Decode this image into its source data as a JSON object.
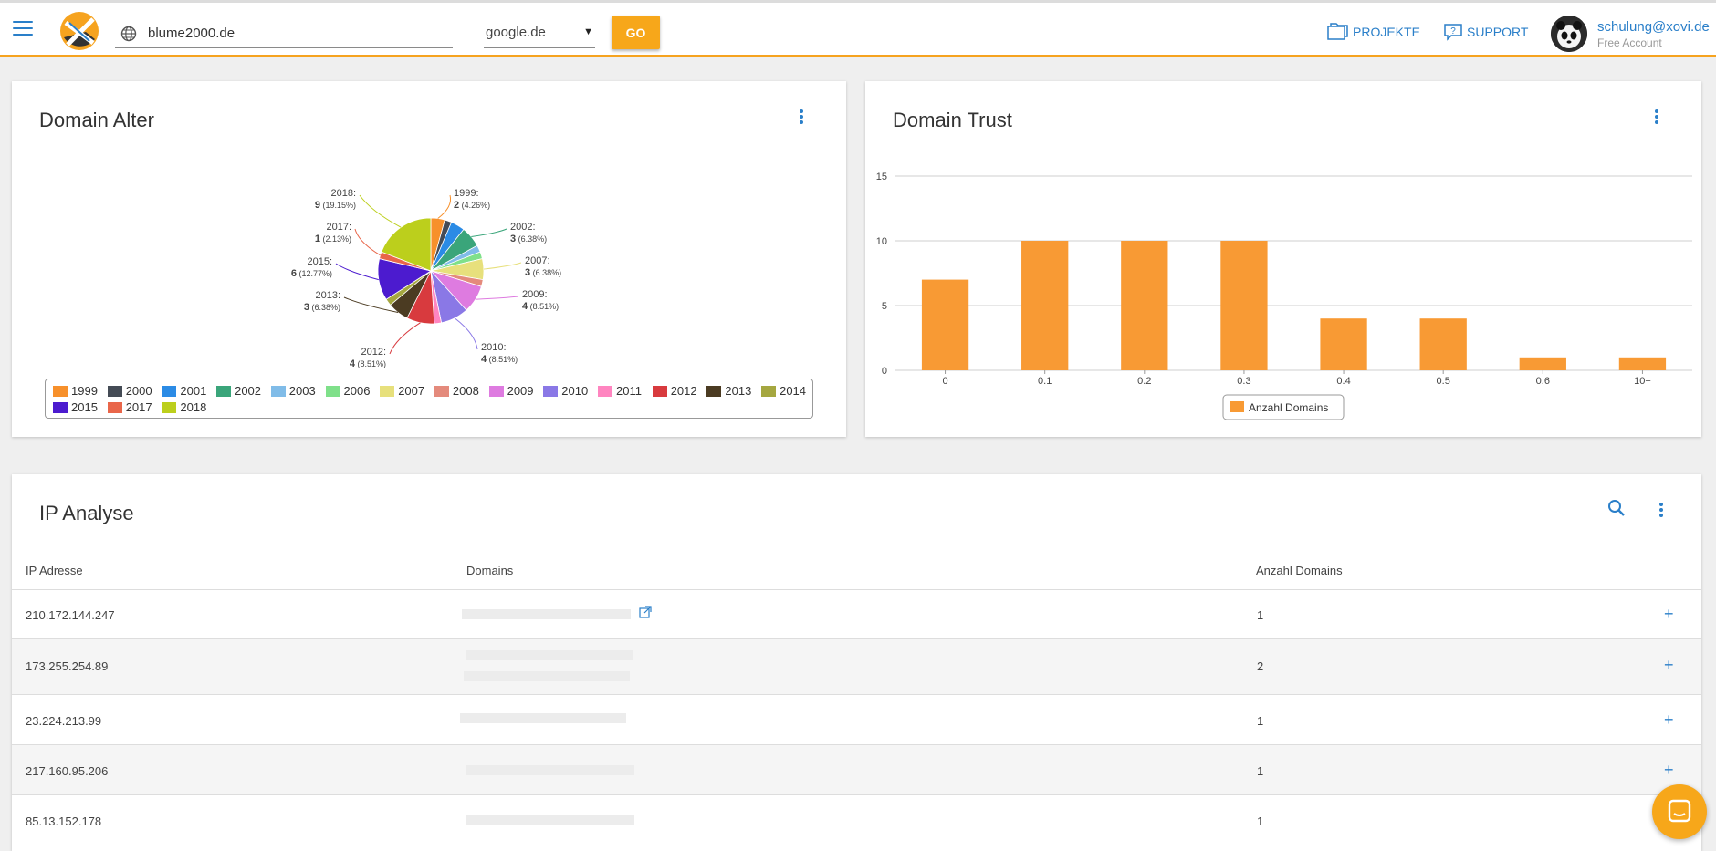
{
  "header": {
    "domain_value": "blume2000.de",
    "engine_selected": "google.de",
    "go_label": "GO",
    "nav_projekte": "PROJEKTE",
    "nav_support": "SUPPORT",
    "user_email": "schulung@xovi.de",
    "user_plan": "Free Account",
    "accent_color": "#f6a31f",
    "link_color": "#2a7fc9"
  },
  "domain_alter": {
    "title": "Domain Alter",
    "labels": [
      {
        "year": "1999:",
        "count": "2",
        "pct": "(4.26%)"
      },
      {
        "year": "2002:",
        "count": "3",
        "pct": "(6.38%)"
      },
      {
        "year": "2007:",
        "count": "3",
        "pct": "(6.38%)"
      },
      {
        "year": "2009:",
        "count": "4",
        "pct": "(8.51%)"
      },
      {
        "year": "2010:",
        "count": "4",
        "pct": "(8.51%)"
      },
      {
        "year": "2012:",
        "count": "4",
        "pct": "(8.51%)"
      },
      {
        "year": "2013:",
        "count": "3",
        "pct": "(6.38%)"
      },
      {
        "year": "2015:",
        "count": "6",
        "pct": "(12.77%)"
      },
      {
        "year": "2017:",
        "count": "1",
        "pct": "(2.13%)"
      },
      {
        "year": "2018:",
        "count": "9",
        "pct": "(19.15%)"
      }
    ],
    "legend": [
      {
        "label": "1999",
        "color": "#f7902b"
      },
      {
        "label": "2000",
        "color": "#444b55"
      },
      {
        "label": "2001",
        "color": "#2b8be5"
      },
      {
        "label": "2002",
        "color": "#3aa57a"
      },
      {
        "label": "2003",
        "color": "#80bce8"
      },
      {
        "label": "2006",
        "color": "#7fe08a"
      },
      {
        "label": "2007",
        "color": "#e7e07c"
      },
      {
        "label": "2008",
        "color": "#e48a7c"
      },
      {
        "label": "2009",
        "color": "#de7be0"
      },
      {
        "label": "2010",
        "color": "#8a78e6"
      },
      {
        "label": "2011",
        "color": "#ff85c0"
      },
      {
        "label": "2012",
        "color": "#d83a3e"
      },
      {
        "label": "2013",
        "color": "#4b3b22"
      },
      {
        "label": "2014",
        "color": "#a5a740"
      },
      {
        "label": "2015",
        "color": "#4c1bcf"
      },
      {
        "label": "2017",
        "color": "#e9664a"
      },
      {
        "label": "2018",
        "color": "#bccf1c"
      }
    ]
  },
  "chart_data": [
    {
      "type": "pie",
      "title": "Domain Alter",
      "categories": [
        "1999",
        "2000",
        "2001",
        "2002",
        "2003",
        "2006",
        "2007",
        "2008",
        "2009",
        "2010",
        "2011",
        "2012",
        "2013",
        "2014",
        "2015",
        "2017",
        "2018"
      ],
      "values": [
        2,
        1,
        2,
        3,
        1,
        1,
        3,
        1,
        4,
        4,
        1,
        4,
        3,
        1,
        6,
        1,
        9
      ],
      "colors": [
        "#f7902b",
        "#444b55",
        "#2b8be5",
        "#3aa57a",
        "#80bce8",
        "#7fe08a",
        "#e7e07c",
        "#e48a7c",
        "#de7be0",
        "#8a78e6",
        "#ff85c0",
        "#d83a3e",
        "#4b3b22",
        "#a5a740",
        "#4c1bcf",
        "#e9664a",
        "#bccf1c"
      ],
      "legend_position": "bottom"
    },
    {
      "type": "bar",
      "title": "Domain Trust",
      "categories": [
        "0",
        "0.1",
        "0.2",
        "0.3",
        "0.4",
        "0.5",
        "0.6",
        "10+"
      ],
      "series": [
        {
          "name": "Anzahl Domains",
          "values": [
            7,
            10,
            10,
            10,
            4,
            4,
            1,
            1
          ],
          "color": "#f89a34"
        }
      ],
      "yticks": [
        "0",
        "5",
        "10",
        "15"
      ],
      "ylim": [
        0,
        15
      ],
      "grid": true,
      "legend_position": "bottom"
    }
  ],
  "domain_trust": {
    "title": "Domain Trust"
  },
  "ip_analyse": {
    "title": "IP Analyse",
    "columns": [
      "IP Adresse",
      "Domains",
      "Anzahl Domains"
    ],
    "rows": [
      {
        "ip": "210.172.144.247",
        "count": "1"
      },
      {
        "ip": "173.255.254.89",
        "count": "2"
      },
      {
        "ip": "23.224.213.99",
        "count": "1"
      },
      {
        "ip": "217.160.95.206",
        "count": "1"
      },
      {
        "ip": "85.13.152.178",
        "count": "1"
      }
    ],
    "expand_label": "+"
  }
}
